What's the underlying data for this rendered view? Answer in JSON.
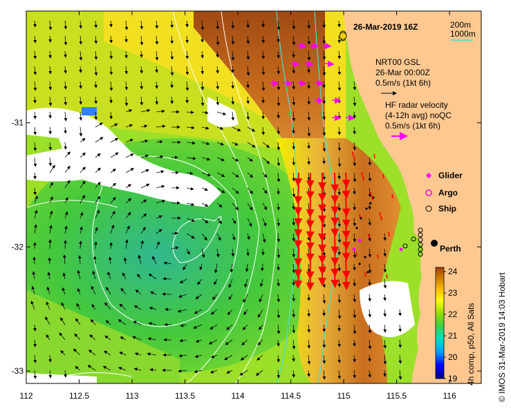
{
  "chart_data": {
    "type": "heatmap",
    "title": "26-Mar-2019 16Z",
    "credit": "© IMOS 31-Mar-2019 14:03 Hobart",
    "x_ticks": [
      112,
      112.5,
      113,
      113.5,
      114,
      114.5,
      115,
      115.5,
      116
    ],
    "x_tick_labels": [
      "112",
      "112.5",
      "113",
      "113.5",
      "114",
      "114.5",
      "115",
      "115.5",
      "116"
    ],
    "y_ticks": [
      -31,
      -32,
      -33
    ],
    "y_tick_labels": [
      "-31",
      "-32",
      "-33"
    ],
    "xlim": [
      112,
      116.3
    ],
    "ylim": [
      -33.1,
      -30.1
    ],
    "contour_legend": {
      "line1": "200m",
      "line2": "1000m",
      "line_color": "#40e0d0"
    },
    "gsl_legend": {
      "line1": "NRT00 GSL",
      "line2": "26-Mar 00:00Z",
      "line3": "0.5m/s (1kt 6h)"
    },
    "hf_legend": {
      "line1": "HF radar velocity",
      "line2": "(4-12h avg) noQC",
      "line3": "0.5m/s (1kt 6h)",
      "arrow_color": "#ff00ff"
    },
    "platforms": [
      {
        "label": "Glider",
        "symbol": "diamond",
        "color": "#ff00ff"
      },
      {
        "label": "Argo",
        "symbol": "star-circle",
        "color": "#ff00ff"
      },
      {
        "label": "Ship",
        "symbol": "circle",
        "color": "#000000"
      }
    ],
    "city": {
      "name": "Perth",
      "lon": 115.86,
      "lat": -31.95
    },
    "colorbar": {
      "ticks": [
        24,
        23,
        22,
        21,
        20,
        19
      ],
      "tick_labels": [
        "24",
        "23",
        "22",
        "21",
        "20",
        "19"
      ],
      "range": [
        19,
        24.2
      ],
      "label": "4h comp, p50, All Sats",
      "colors": [
        "#000080",
        "#0000ff",
        "#00a0ff",
        "#00e0c0",
        "#40d040",
        "#a0e000",
        "#ffff00",
        "#ffc000",
        "#d08000",
        "#a04000"
      ]
    },
    "sst_colors": {
      "warm_shelf": "#c86e1e",
      "mid": "#e8b43a",
      "yellow": "#f2f000",
      "light_green": "#9ce02a",
      "green": "#44c83c",
      "teal": "#30b890",
      "land": "#ffc891",
      "cloud": "#ffffff"
    },
    "highlight_vector_color": "#ff0000",
    "ambient_vector_color": "#000000",
    "bathymetry_lines_color": "#ffffff"
  }
}
